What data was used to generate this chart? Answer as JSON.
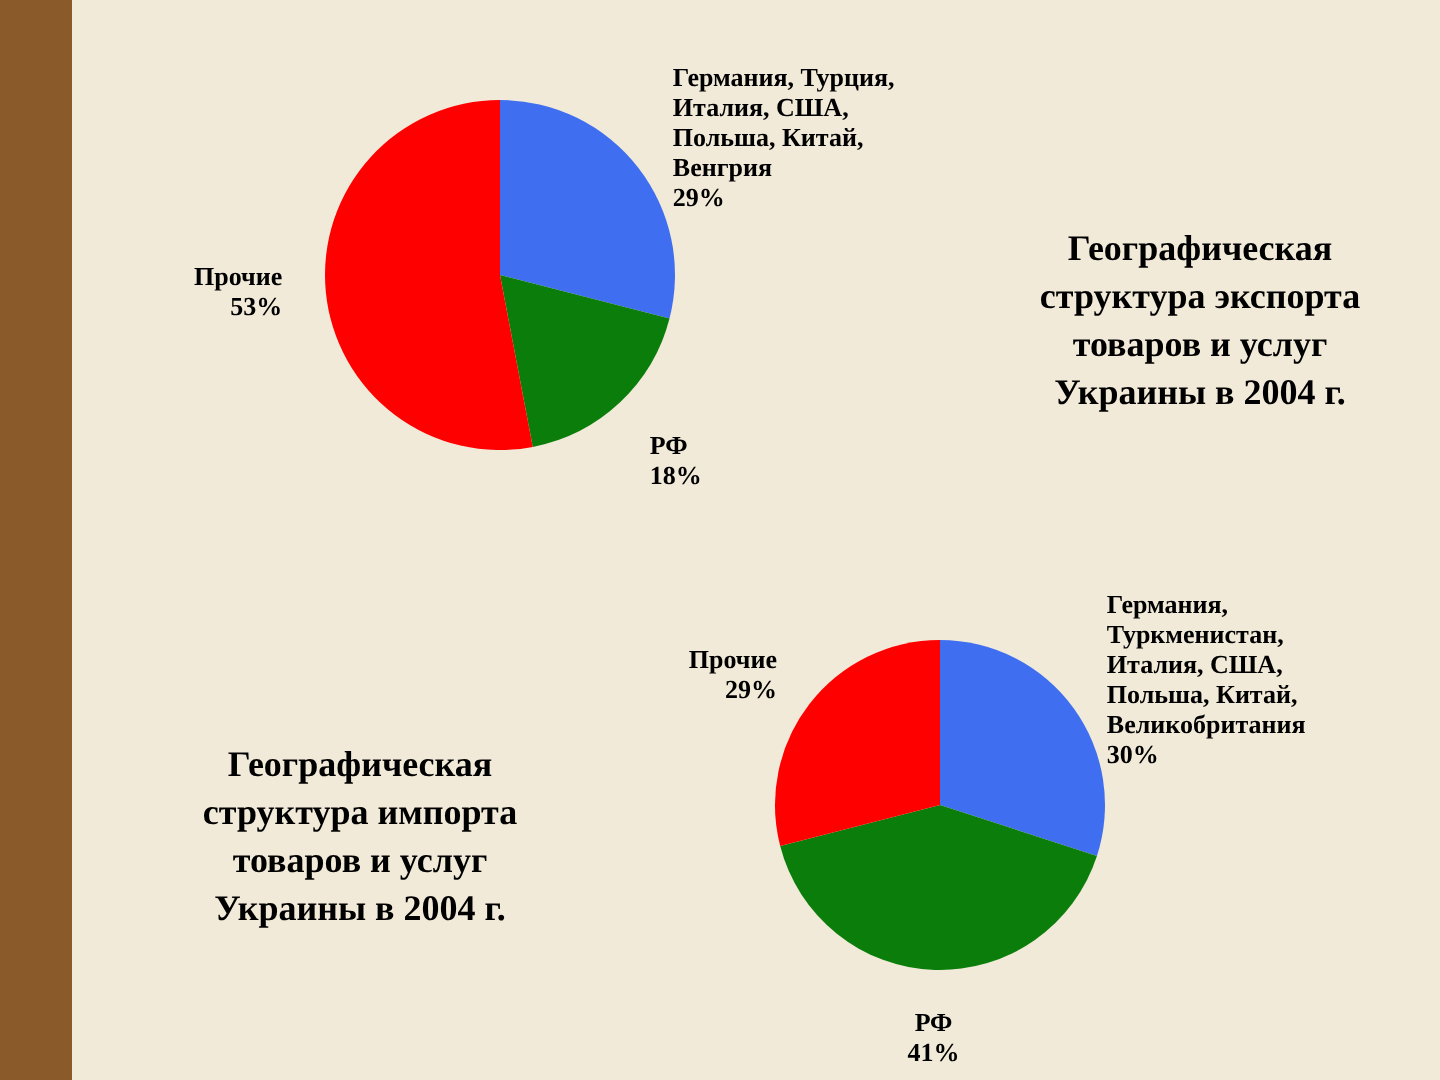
{
  "chart_data": [
    {
      "type": "pie",
      "title": "Географическая структура экспорта товаров и услуг Украины в 2004 г.",
      "categories": [
        "Германия, Турция, Италия, США, Польша, Китай, Венгрия",
        "РФ",
        "Прочие"
      ],
      "values": [
        29,
        18,
        53
      ],
      "value_labels": [
        "29%",
        "18%",
        "53%"
      ],
      "colors": [
        "#3f6ff0",
        "#0a7d0a",
        "#ff0000"
      ]
    },
    {
      "type": "pie",
      "title": "Географическая структура импорта товаров и услуг Украины в 2004 г.",
      "categories": [
        "Германия, Туркменистан, Италия, США, Польша, Китай, Великобритания",
        "РФ",
        "Прочие"
      ],
      "values": [
        30,
        41,
        29
      ],
      "value_labels": [
        "30%",
        "41%",
        "29%"
      ],
      "colors": [
        "#3f6ff0",
        "#0a7d0a",
        "#ff0000"
      ]
    }
  ]
}
